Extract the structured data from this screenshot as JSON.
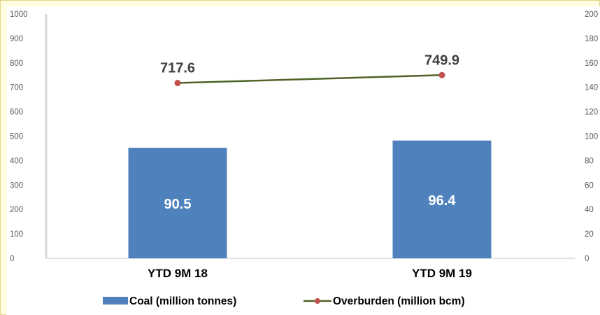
{
  "chart_data": {
    "type": "bar",
    "categories": [
      "YTD 9M 18",
      "YTD 9M 19"
    ],
    "series": [
      {
        "name": "Coal (million tonnes)",
        "type": "bar",
        "axis": "right",
        "values": [
          90.5,
          96.4
        ],
        "color": "#4f81bd",
        "data_labels": [
          "90.5",
          "96.4"
        ]
      },
      {
        "name": "Overburden (million bcm)",
        "type": "line",
        "axis": "left",
        "values": [
          717.6,
          749.9
        ],
        "line_color": "#4f6228",
        "marker_color": "#c0504d",
        "data_labels": [
          "717.6",
          "749.9"
        ]
      }
    ],
    "left_axis": {
      "range": [
        0,
        1000
      ],
      "ticks": [
        "0",
        "100",
        "200",
        "300",
        "400",
        "500",
        "600",
        "700",
        "800",
        "900",
        "1000"
      ]
    },
    "right_axis": {
      "range": [
        0,
        200
      ],
      "ticks": [
        "0",
        "20",
        "40",
        "60",
        "80",
        "100",
        "120",
        "140",
        "160",
        "180",
        "200"
      ]
    },
    "legend_position": "bottom",
    "grid": false
  }
}
